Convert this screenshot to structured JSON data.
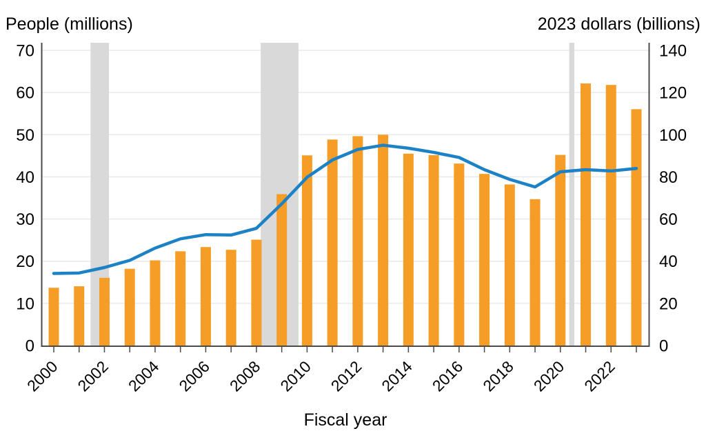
{
  "chart_data": {
    "type": "combo_bar_line",
    "x": [
      2000,
      2001,
      2002,
      2003,
      2004,
      2005,
      2006,
      2007,
      2008,
      2009,
      2010,
      2011,
      2012,
      2013,
      2014,
      2015,
      2016,
      2017,
      2018,
      2019,
      2020,
      2021,
      2022,
      2023
    ],
    "series": [
      {
        "name": "spending-2023-dollars",
        "type": "bar",
        "axis": "right",
        "values": [
          27.4,
          28.1,
          32.1,
          36.4,
          40.4,
          44.7,
          46.7,
          45.4,
          50.2,
          71.8,
          90.2,
          97.7,
          99.3,
          100.0,
          91.0,
          90.3,
          86.3,
          81.4,
          76.4,
          69.4,
          90.4,
          124.3,
          123.6,
          112.1
        ]
      },
      {
        "name": "people-participating",
        "type": "line",
        "axis": "left",
        "values": [
          17.1,
          17.2,
          18.5,
          20.2,
          23.1,
          25.3,
          26.3,
          26.2,
          27.8,
          33.6,
          39.9,
          44.0,
          46.5,
          47.5,
          46.8,
          45.8,
          44.6,
          41.7,
          39.4,
          37.6,
          41.2,
          41.7,
          41.4,
          42.0
        ]
      }
    ],
    "left_axis": {
      "title": "People (millions)",
      "range": [
        0,
        70
      ],
      "ticks": [
        0,
        10,
        20,
        30,
        40,
        50,
        60,
        70
      ]
    },
    "right_axis": {
      "title": "2023 dollars (billions)",
      "range": [
        0,
        140
      ],
      "ticks": [
        0,
        20,
        40,
        60,
        80,
        100,
        120,
        140
      ]
    },
    "x_axis": {
      "title": "Fiscal year",
      "labeled_ticks": [
        2000,
        2002,
        2004,
        2006,
        2008,
        2010,
        2012,
        2014,
        2016,
        2018,
        2020,
        2022
      ]
    },
    "recession_bands": [
      {
        "from": 2001.45,
        "to": 2002.18
      },
      {
        "from": 2008.17,
        "to": 2009.66
      },
      {
        "from": 2020.35,
        "to": 2020.55
      }
    ],
    "grid": true,
    "legend": "none",
    "colors": {
      "bar": "#F59D27",
      "line": "#1C81C5",
      "band": "#D9D9D9",
      "gridline": "#E9E9E9",
      "axis": "#4A4A4A",
      "text": "#000000",
      "background": "#FFFFFF"
    }
  }
}
